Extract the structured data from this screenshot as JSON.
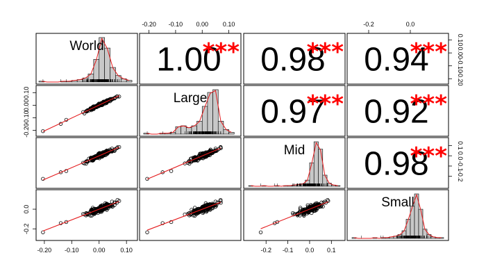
{
  "chart_data": {
    "type": "scatter-matrix",
    "title": "",
    "variables": [
      "World",
      "Large",
      "Mid",
      "Small"
    ],
    "correlations": [
      {
        "row": 0,
        "col": 1,
        "value": "1.00",
        "stars": "***"
      },
      {
        "row": 0,
        "col": 2,
        "value": "0.98",
        "stars": "***"
      },
      {
        "row": 0,
        "col": 3,
        "value": "0.94",
        "stars": "***"
      },
      {
        "row": 1,
        "col": 2,
        "value": "0.97",
        "stars": "***"
      },
      {
        "row": 1,
        "col": 3,
        "value": "0.92",
        "stars": "***"
      },
      {
        "row": 2,
        "col": 3,
        "value": "0.98",
        "stars": "***"
      }
    ],
    "axes": {
      "World": {
        "range": [
          -0.22,
          0.13
        ],
        "ticks": [
          -0.2,
          -0.1,
          0.0,
          0.1
        ],
        "tick_labels": [
          "-0.20",
          "-0.10",
          "0.00",
          "0.10"
        ]
      },
      "Large": {
        "range": [
          -0.225,
          0.135
        ],
        "ticks": [
          -0.2,
          -0.1,
          0.0,
          0.1
        ],
        "tick_labels": [
          "-0.20",
          "-0.10",
          "0.00",
          "0.10"
        ]
      },
      "Mid": {
        "range": [
          -0.29,
          0.15
        ],
        "ticks": [
          -0.2,
          -0.1,
          0.0,
          0.1
        ],
        "tick_labels": [
          "-0.2",
          "-0.1",
          "0.0",
          "0.1"
        ]
      },
      "Small": {
        "range": [
          -0.29,
          0.17
        ],
        "ticks": [
          -0.2,
          0.0
        ],
        "tick_labels": [
          "-0.2",
          "0.0"
        ]
      }
    },
    "histograms": {
      "World": {
        "bins": [
          -0.22,
          -0.2,
          -0.18,
          -0.16,
          -0.14,
          -0.12,
          -0.1,
          -0.08,
          -0.06,
          -0.04,
          -0.02,
          0.0,
          0.02,
          0.04,
          0.06,
          0.08,
          0.1,
          0.12
        ],
        "counts": [
          1,
          0,
          0,
          0,
          1,
          1,
          2,
          3,
          5,
          10,
          28,
          55,
          42,
          18,
          8,
          4,
          2
        ]
      },
      "Large": {
        "bins": [
          -0.22,
          -0.2,
          -0.18,
          -0.16,
          -0.14,
          -0.12,
          -0.1,
          -0.08,
          -0.06,
          -0.04,
          -0.02,
          0.0,
          0.02,
          0.04,
          0.06,
          0.08,
          0.1,
          0.12
        ],
        "counts": [
          1,
          0,
          0,
          1,
          1,
          2,
          8,
          9,
          7,
          9,
          14,
          30,
          45,
          48,
          14,
          5,
          2
        ]
      },
      "Mid": {
        "bins": [
          -0.28,
          -0.26,
          -0.24,
          -0.22,
          -0.2,
          -0.18,
          -0.16,
          -0.14,
          -0.12,
          -0.1,
          -0.08,
          -0.06,
          -0.04,
          -0.02,
          0.0,
          0.02,
          0.04,
          0.06,
          0.08,
          0.1,
          0.12,
          0.14
        ],
        "counts": [
          1,
          0,
          0,
          1,
          0,
          0,
          1,
          0,
          1,
          1,
          2,
          3,
          4,
          10,
          38,
          72,
          60,
          18,
          5,
          2,
          1
        ]
      },
      "Small": {
        "bins": [
          -0.28,
          -0.26,
          -0.24,
          -0.22,
          -0.2,
          -0.18,
          -0.16,
          -0.14,
          -0.12,
          -0.1,
          -0.08,
          -0.06,
          -0.04,
          -0.02,
          0.0,
          0.02,
          0.04,
          0.06,
          0.08,
          0.1,
          0.12,
          0.14,
          0.16
        ],
        "counts": [
          1,
          0,
          0,
          0,
          0,
          1,
          0,
          1,
          1,
          2,
          3,
          5,
          10,
          25,
          42,
          58,
          38,
          12,
          5,
          2,
          1,
          1
        ]
      }
    },
    "grid": false,
    "colors": {
      "fit_line": "#e41a1c",
      "stars": "#ff0000",
      "hist_fill": "#c8c8c8",
      "points": "#000000"
    }
  }
}
